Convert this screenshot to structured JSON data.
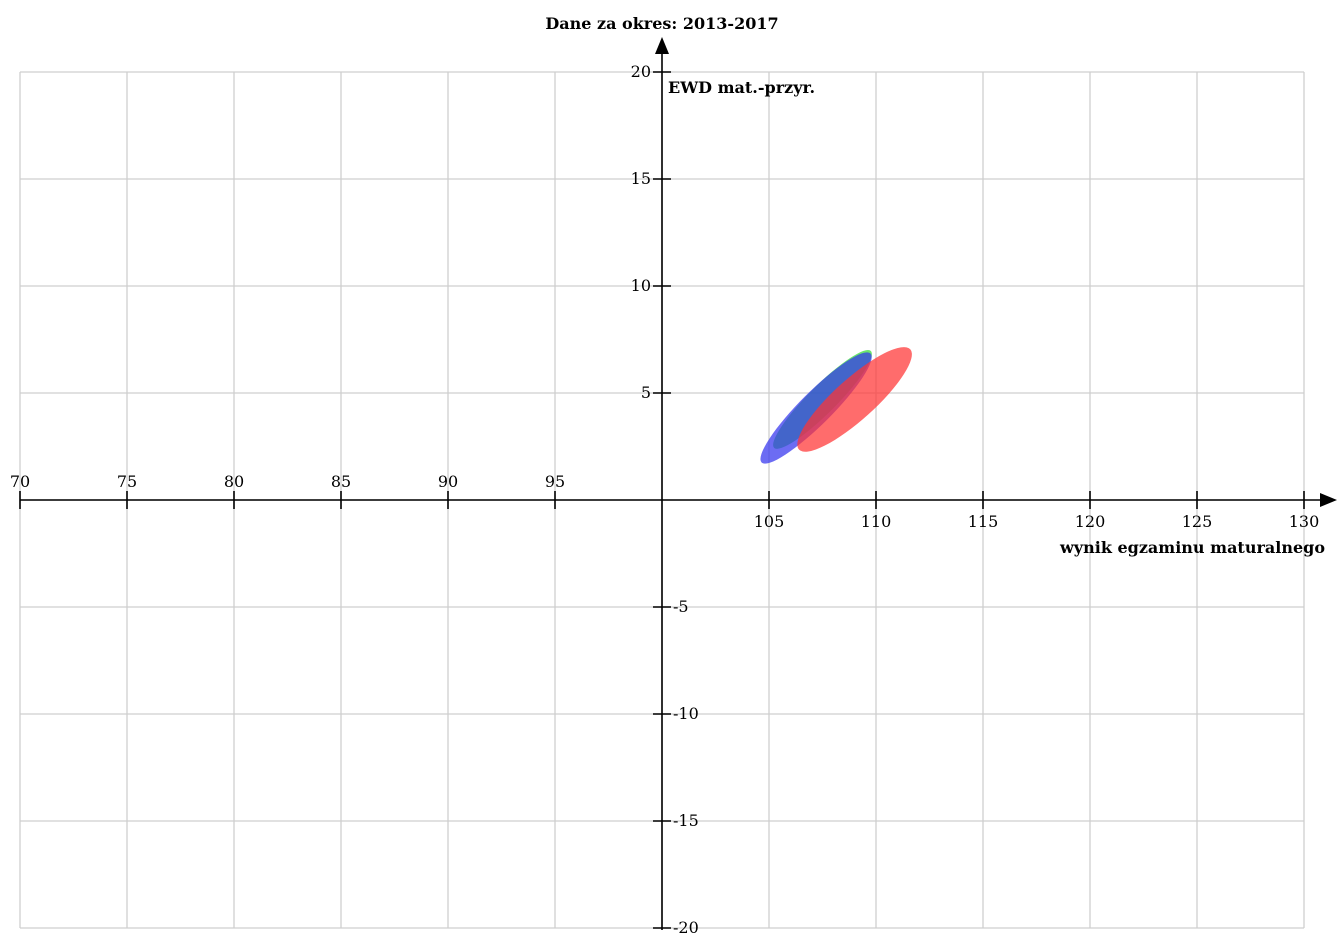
{
  "chart_data": {
    "type": "scatter",
    "title": "Dane za okres: 2013-2017",
    "xlabel": "wynik egzaminu maturalnego",
    "ylabel": "EWD mat.-przyr.",
    "xlim": [
      70,
      130
    ],
    "ylim": [
      -20,
      20
    ],
    "grid": true,
    "x_axis_crossing": 0,
    "y_axis_crossing": 100,
    "x_ticks": [
      70,
      75,
      80,
      85,
      90,
      95,
      105,
      110,
      115,
      120,
      125,
      130
    ],
    "y_ticks": [
      20,
      15,
      10,
      5,
      -5,
      -10,
      -15,
      -20
    ],
    "series": [
      {
        "color": "#33dd33",
        "center": [
          107.5,
          4.7
        ],
        "semi_axes": [
          3.2,
          0.65
        ],
        "angle_deg": 45
      },
      {
        "color": "#3333ee",
        "center": [
          107.2,
          4.3
        ],
        "semi_axes": [
          3.6,
          0.75
        ],
        "angle_deg": 45
      },
      {
        "color": "#ff3333",
        "center": [
          109.0,
          4.7
        ],
        "semi_axes": [
          3.5,
          0.95
        ],
        "angle_deg": 42
      }
    ]
  }
}
